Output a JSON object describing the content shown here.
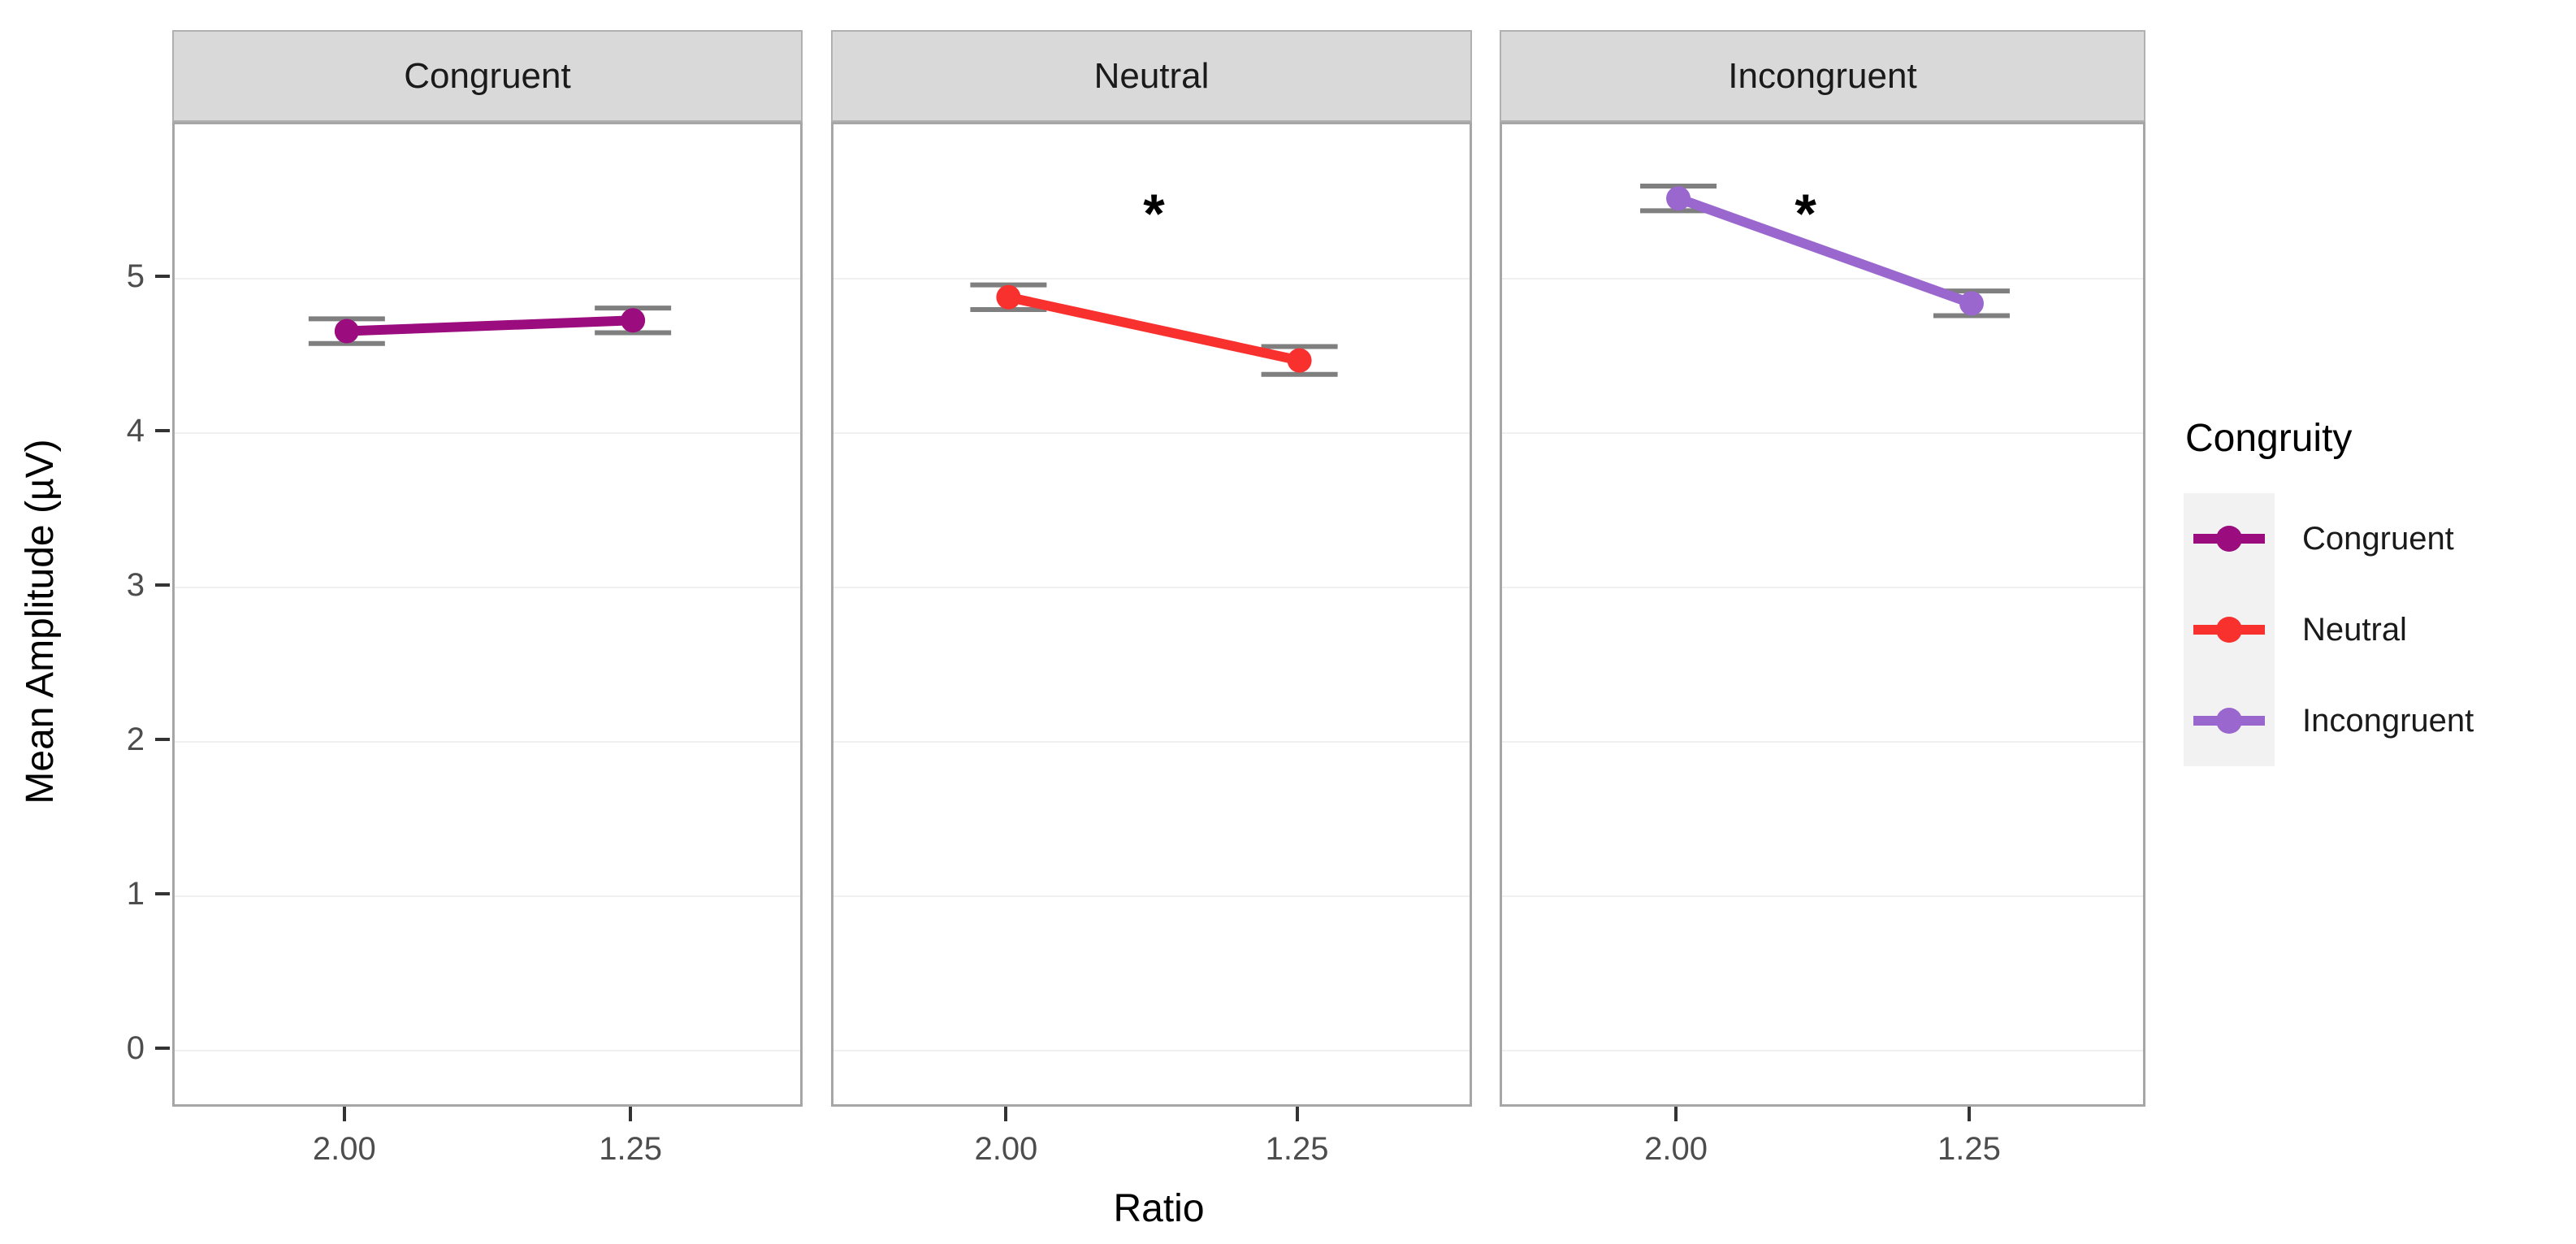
{
  "chart_data": {
    "type": "line",
    "title": "",
    "facet_variable": "Congruity",
    "facets": [
      "Congruent",
      "Neutral",
      "Incongruent"
    ],
    "x": [
      "2.00",
      "1.25"
    ],
    "xlabel": "Ratio",
    "ylabel": "Mean Amplitude (µV)",
    "ylim": [
      -0.38,
      6.0
    ],
    "yticks": [
      0,
      1,
      2,
      3,
      4,
      5
    ],
    "grid": "major-horizontal",
    "legend": {
      "title": "Congruity",
      "position": "right"
    },
    "errorbar_color": "#7f7f7f",
    "series": [
      {
        "name": "Congruent",
        "color": "#9b0d7e",
        "values": [
          4.66,
          4.73
        ],
        "errors": [
          0.08,
          0.08
        ],
        "significance": null
      },
      {
        "name": "Neutral",
        "color": "#f8302e",
        "values": [
          4.88,
          4.47
        ],
        "errors": [
          0.08,
          0.09
        ],
        "significance": {
          "label": "*",
          "y": 5.42,
          "x_frac": 0.5
        }
      },
      {
        "name": "Incongruent",
        "color": "#9a67ce",
        "values": [
          5.52,
          4.84
        ],
        "errors": [
          0.08,
          0.08
        ],
        "significance": {
          "label": "*",
          "y": 5.42,
          "x_frac": 0.47
        }
      }
    ]
  }
}
